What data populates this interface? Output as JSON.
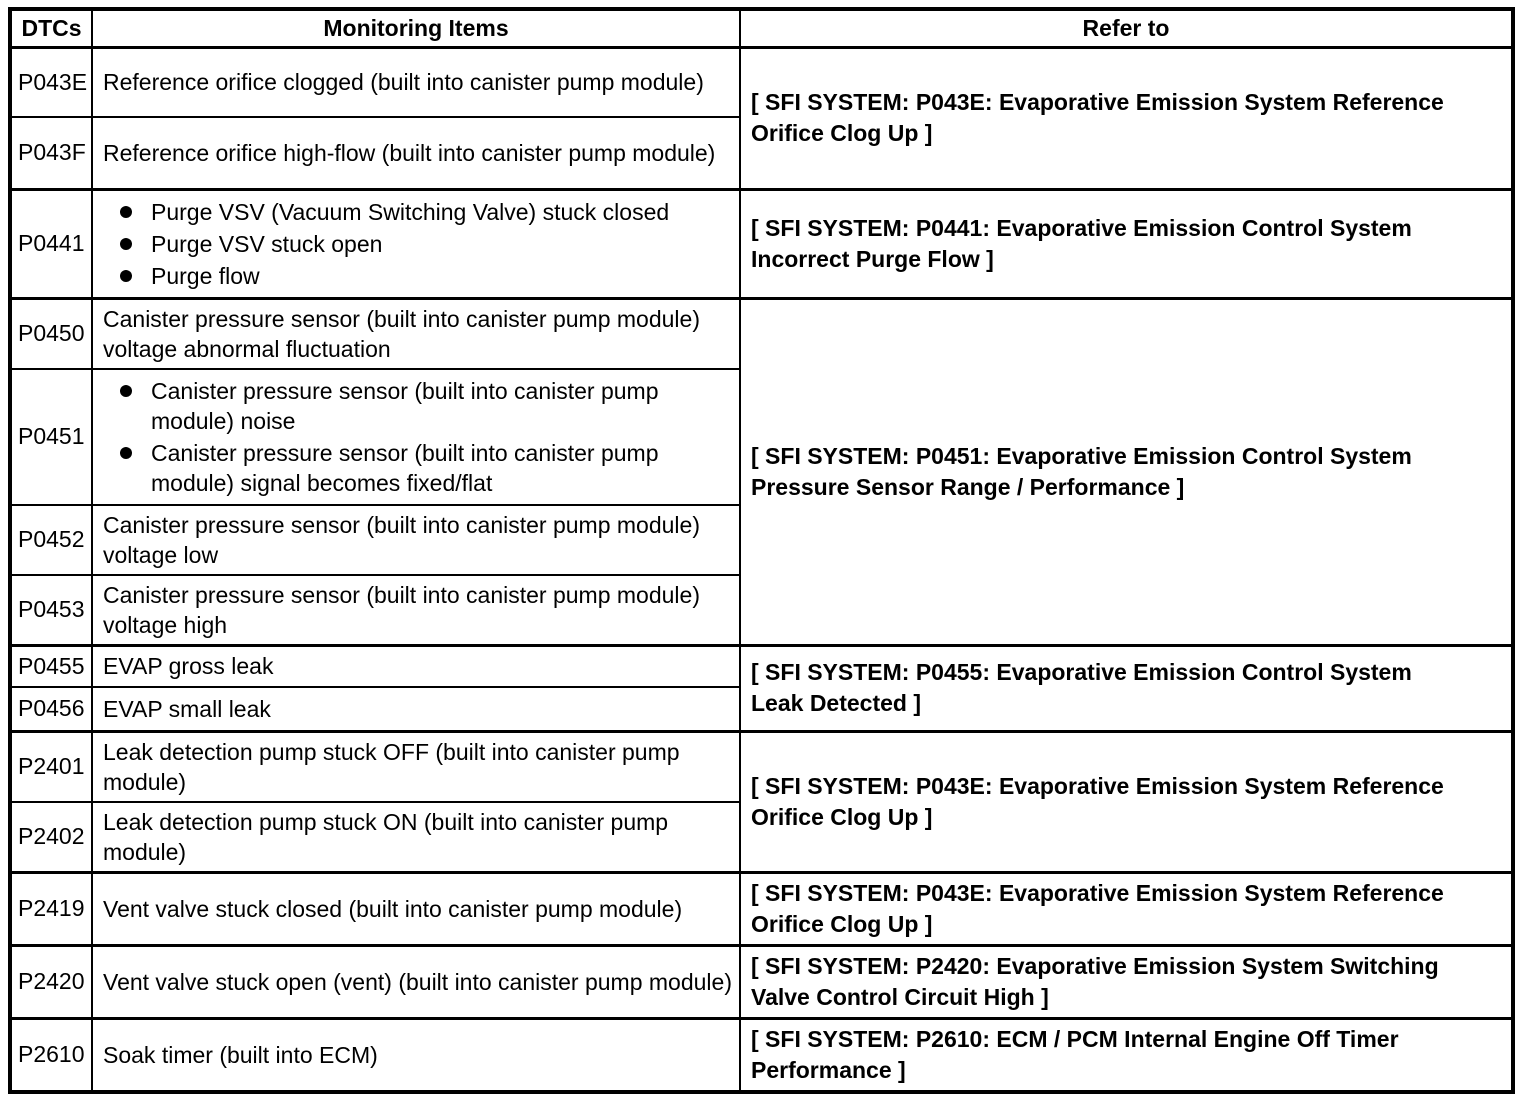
{
  "colors": {
    "border": "#000000",
    "text": "#000000",
    "background": "#ffffff"
  },
  "table": {
    "headers": [
      "DTCs",
      "Monitoring Items",
      "Refer to"
    ],
    "groups": [
      {
        "refer_to_lines": [
          "[ SFI SYSTEM: P043E: Evaporative Emission System Reference",
          "Orifice Clog Up ]"
        ],
        "rows": [
          {
            "dtc": "P043E",
            "text": "Reference orifice clogged (built into canister pump module)"
          },
          {
            "dtc": "P043F",
            "text": "Reference orifice high-flow (built into canister pump module)"
          }
        ]
      },
      {
        "refer_to_lines": [
          "[ SFI SYSTEM: P0441: Evaporative Emission Control System",
          "Incorrect Purge Flow ]"
        ],
        "rows": [
          {
            "dtc": "P0441",
            "items": [
              "Purge VSV (Vacuum Switching Valve) stuck closed",
              "Purge VSV stuck open",
              "Purge flow"
            ]
          }
        ]
      },
      {
        "refer_to_lines": [
          "[ SFI SYSTEM: P0451: Evaporative Emission Control System",
          "Pressure Sensor Range / Performance ]"
        ],
        "rows": [
          {
            "dtc": "P0450",
            "text": "Canister pressure sensor (built into canister pump module) voltage abnormal fluctuation"
          },
          {
            "dtc": "P0451",
            "items": [
              "Canister pressure sensor (built into canister pump module) noise",
              "Canister pressure sensor (built into canister pump module) signal becomes fixed/flat"
            ]
          },
          {
            "dtc": "P0452",
            "text": "Canister pressure sensor (built into canister pump module) voltage low"
          },
          {
            "dtc": "P0453",
            "text": "Canister pressure sensor (built into canister pump module) voltage high"
          }
        ]
      },
      {
        "refer_to_lines": [
          "[ SFI SYSTEM: P0455: Evaporative Emission Control System",
          "Leak Detected ]"
        ],
        "rows": [
          {
            "dtc": "P0455",
            "text": "EVAP gross leak"
          },
          {
            "dtc": "P0456",
            "text": "EVAP small leak"
          }
        ]
      },
      {
        "refer_to_lines": [
          "[ SFI SYSTEM: P043E: Evaporative Emission System Reference",
          "Orifice Clog Up ]"
        ],
        "rows": [
          {
            "dtc": "P2401",
            "text": "Leak detection pump stuck OFF (built into canister pump module)"
          },
          {
            "dtc": "P2402",
            "text": "Leak detection pump stuck ON (built into canister pump module)"
          }
        ]
      },
      {
        "refer_to_lines": [
          "[ SFI SYSTEM: P043E: Evaporative Emission System Reference",
          "Orifice Clog Up ]"
        ],
        "rows": [
          {
            "dtc": "P2419",
            "text": "Vent valve stuck closed (built into canister pump module)"
          }
        ]
      },
      {
        "refer_to_lines": [
          "[ SFI SYSTEM: P2420: Evaporative Emission System Switching",
          "Valve Control Circuit High ]"
        ],
        "rows": [
          {
            "dtc": "P2420",
            "text": "Vent valve stuck open (vent) (built into canister pump module)"
          }
        ]
      },
      {
        "refer_to_lines": [
          "[ SFI SYSTEM: P2610: ECM / PCM Internal Engine Off Timer",
          "Performance ]"
        ],
        "rows": [
          {
            "dtc": "P2610",
            "text": "Soak timer (built into ECM)"
          }
        ]
      }
    ]
  }
}
